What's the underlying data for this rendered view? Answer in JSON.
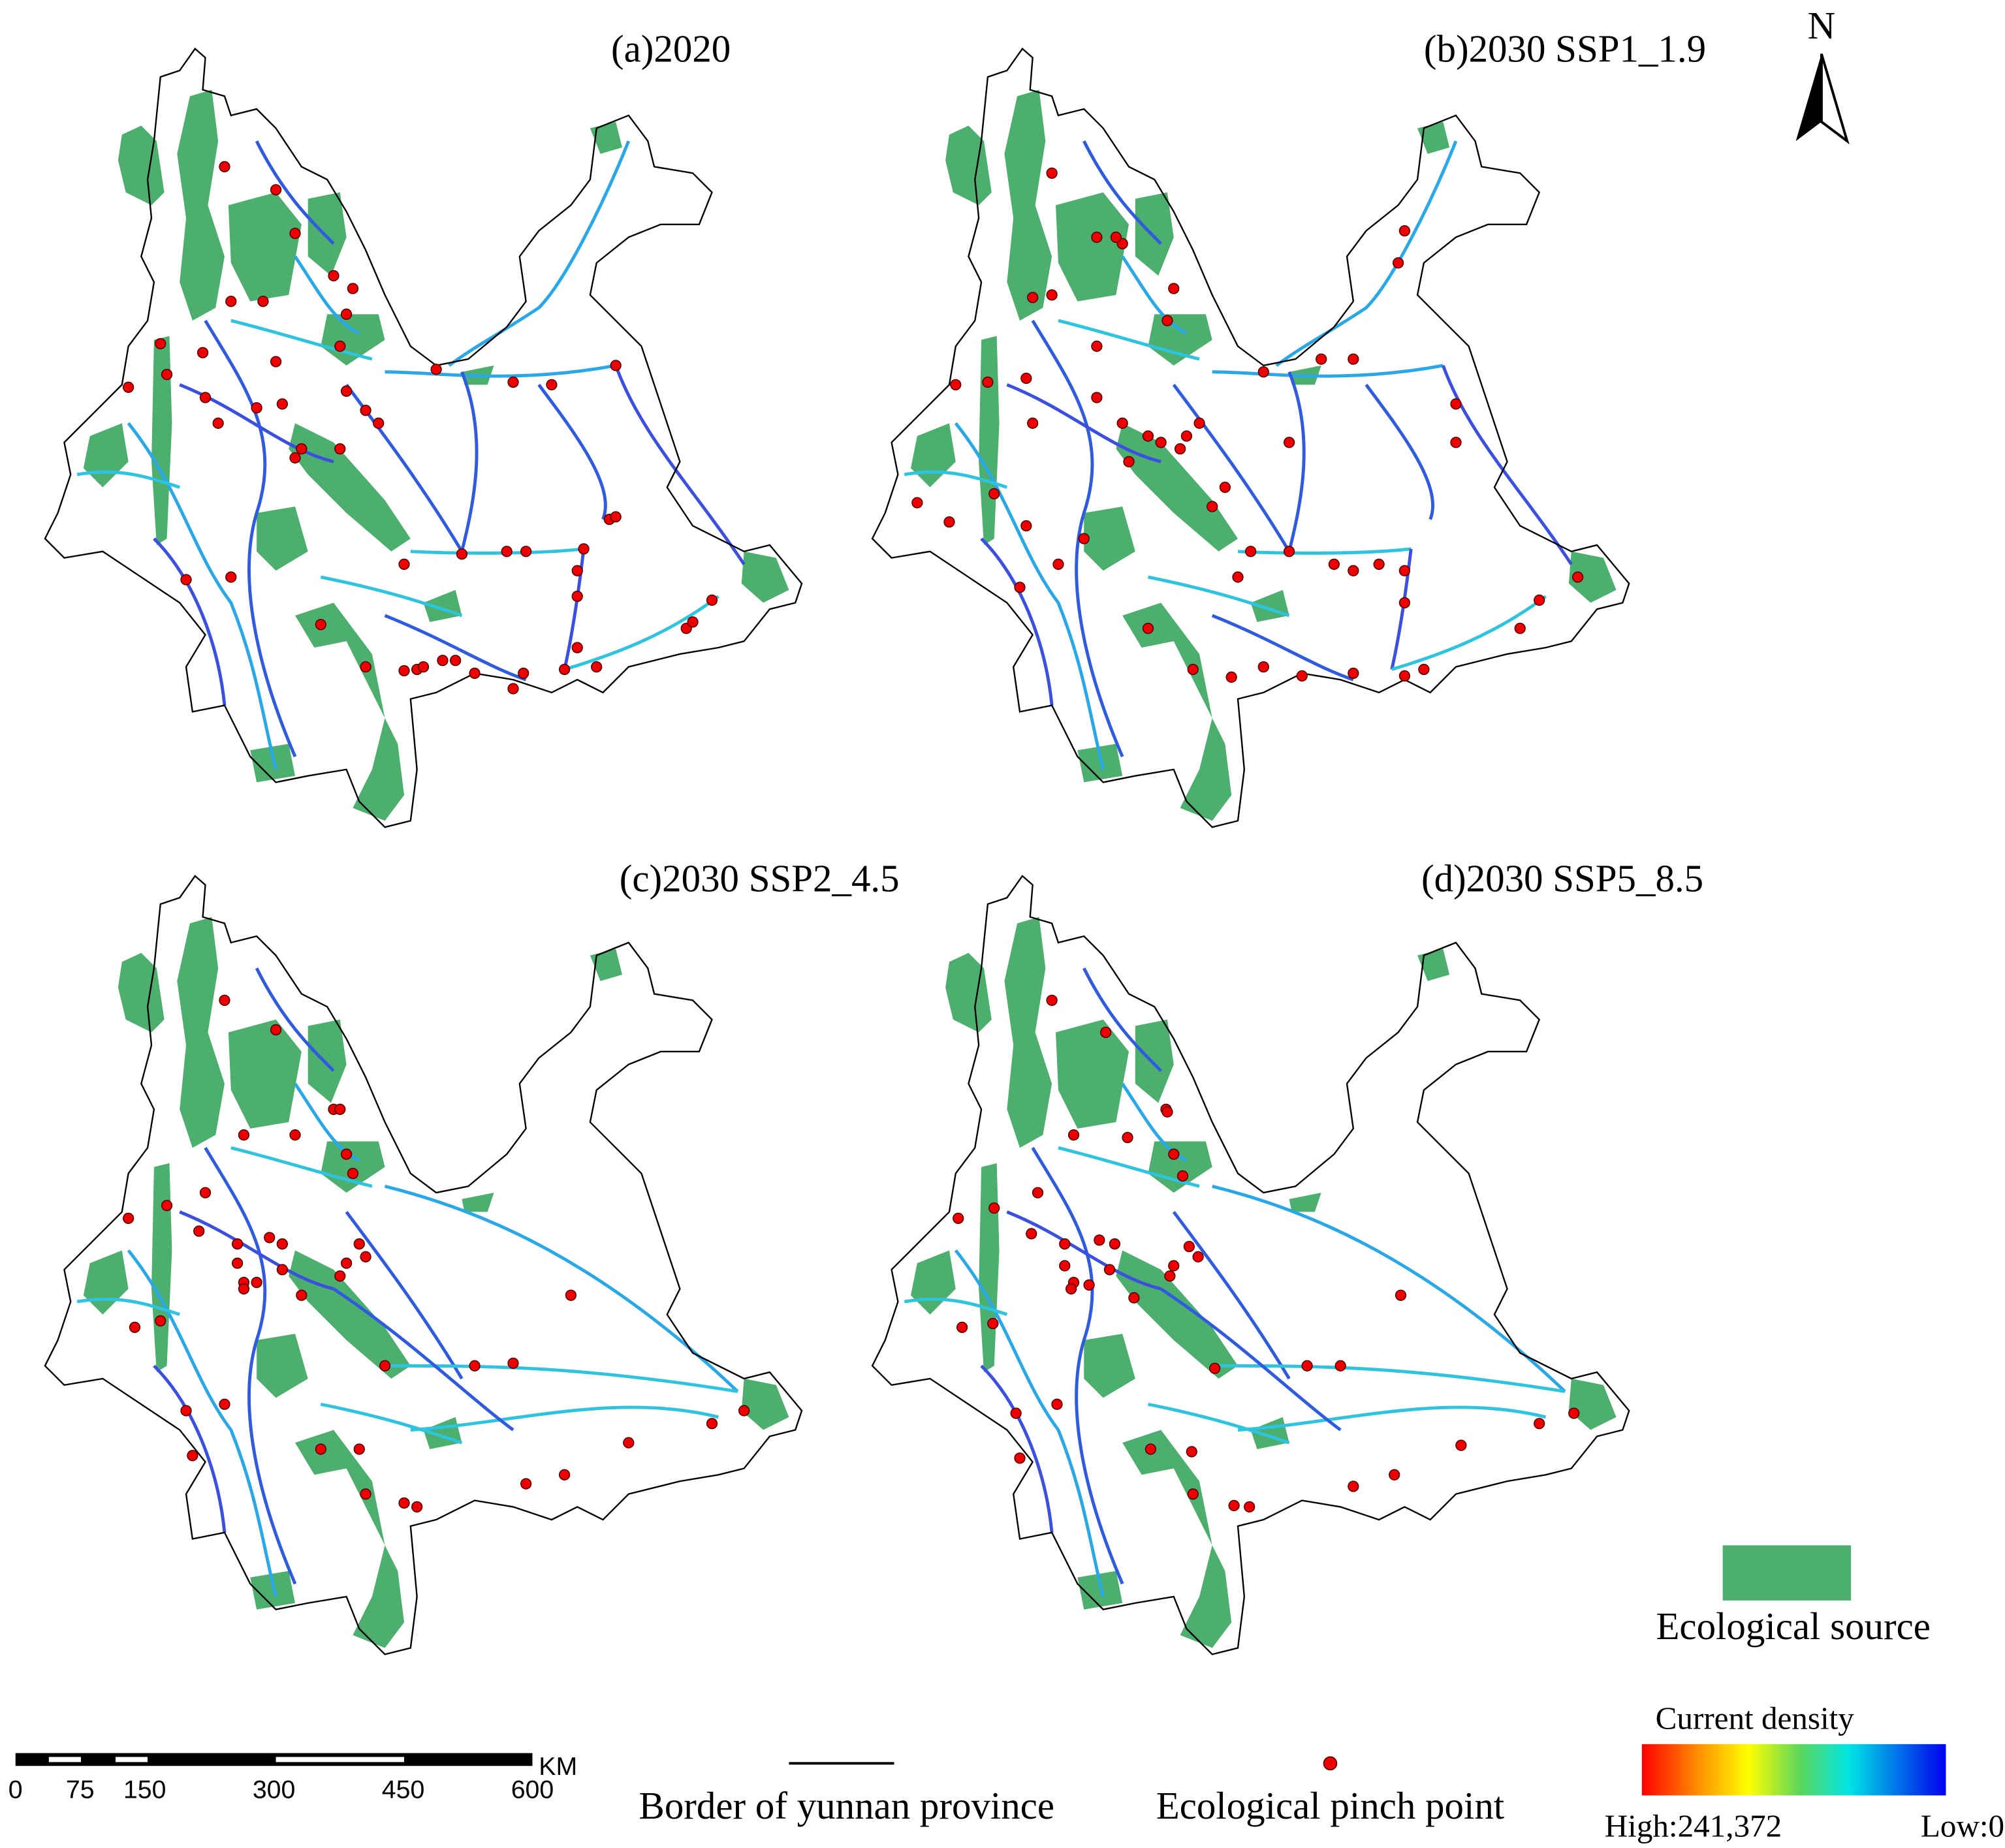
{
  "north_label": "N",
  "panels": [
    {
      "title": "(a)2020"
    },
    {
      "title": "(b)2030 SSP1_1.9"
    },
    {
      "title": "(c)2030 SSP2_4.5"
    },
    {
      "title": "(d)2030 SSP5_8.5"
    }
  ],
  "legend": {
    "source": "Ecological source",
    "border": "Border of yunnan province",
    "pinch_point": "Ecological pinch point",
    "current_density": "Current density",
    "high": "High:241,372",
    "low": "Low:0"
  },
  "scale_bar": {
    "unit": "KM",
    "ticks": [
      0,
      75,
      150,
      300,
      450,
      600
    ]
  }
}
